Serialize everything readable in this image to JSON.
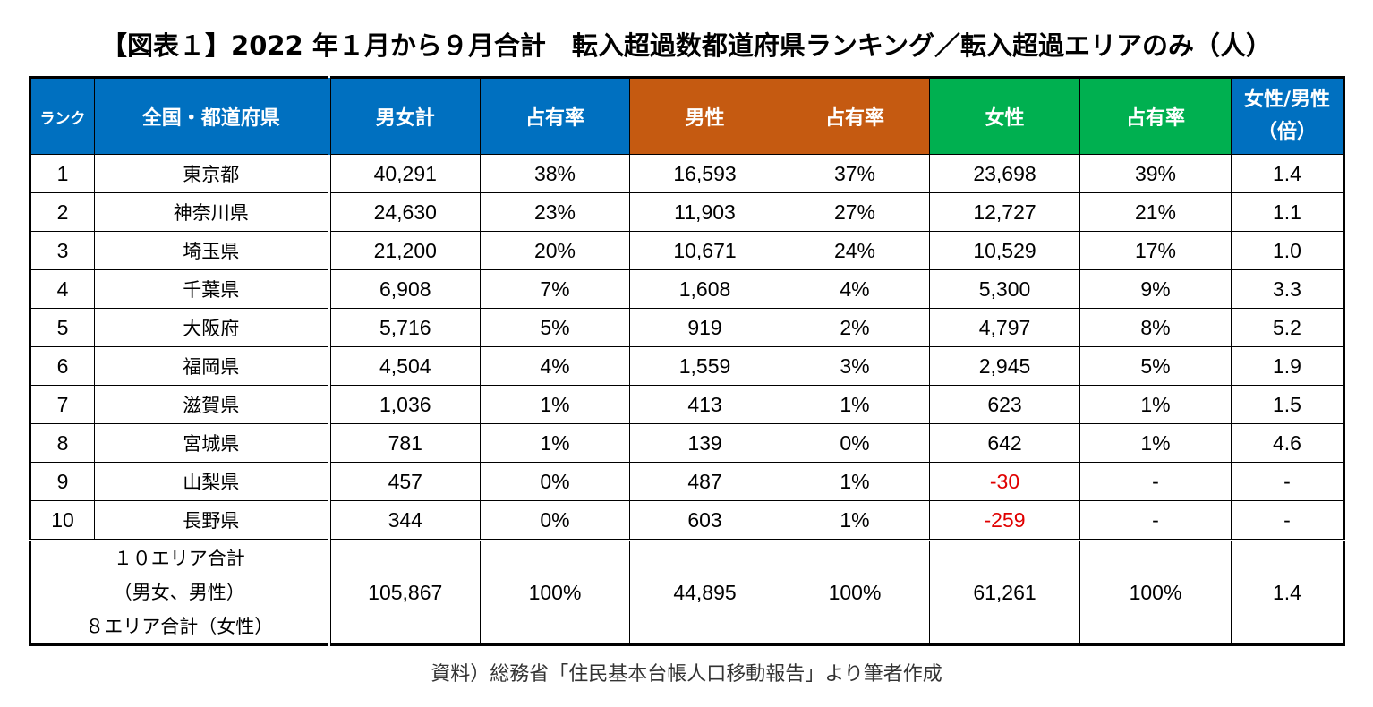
{
  "title": "【図表１】2022 年１月から９月合計　転入超過数都道府県ランキング／転入超過エリアのみ（人）",
  "colors": {
    "blue": "#0070C0",
    "orange": "#C55A11",
    "green": "#00B050",
    "negative": "#E00000"
  },
  "chart_data": {
    "type": "table",
    "columns": [
      "ランク",
      "全国・都道府県",
      "男女計",
      "占有率",
      "男性",
      "占有率",
      "女性",
      "占有率",
      "女性/男性（倍）"
    ],
    "rows": [
      [
        "1",
        "東京都",
        "40,291",
        "38%",
        "16,593",
        "37%",
        "23,698",
        "39%",
        "1.4"
      ],
      [
        "2",
        "神奈川県",
        "24,630",
        "23%",
        "11,903",
        "27%",
        "12,727",
        "21%",
        "1.1"
      ],
      [
        "3",
        "埼玉県",
        "21,200",
        "20%",
        "10,671",
        "24%",
        "10,529",
        "17%",
        "1.0"
      ],
      [
        "4",
        "千葉県",
        "6,908",
        "7%",
        "1,608",
        "4%",
        "5,300",
        "9%",
        "3.3"
      ],
      [
        "5",
        "大阪府",
        "5,716",
        "5%",
        "919",
        "2%",
        "4,797",
        "8%",
        "5.2"
      ],
      [
        "6",
        "福岡県",
        "4,504",
        "4%",
        "1,559",
        "3%",
        "2,945",
        "5%",
        "1.9"
      ],
      [
        "7",
        "滋賀県",
        "1,036",
        "1%",
        "413",
        "1%",
        "623",
        "1%",
        "1.5"
      ],
      [
        "8",
        "宮城県",
        "781",
        "1%",
        "139",
        "0%",
        "642",
        "1%",
        "4.6"
      ],
      [
        "9",
        "山梨県",
        "457",
        "0%",
        "487",
        "1%",
        "-30",
        "-",
        "-"
      ],
      [
        "10",
        "長野県",
        "344",
        "0%",
        "603",
        "1%",
        "-259",
        "-",
        "-"
      ]
    ],
    "total": {
      "label": [
        "１０エリア合計",
        "（男女、男性）",
        "８エリア合計（女性）"
      ],
      "values": [
        "105,867",
        "100%",
        "44,895",
        "100%",
        "61,261",
        "100%",
        "1.4"
      ]
    }
  },
  "source": "資料）総務省「住民基本台帳人口移動報告」より筆者作成"
}
